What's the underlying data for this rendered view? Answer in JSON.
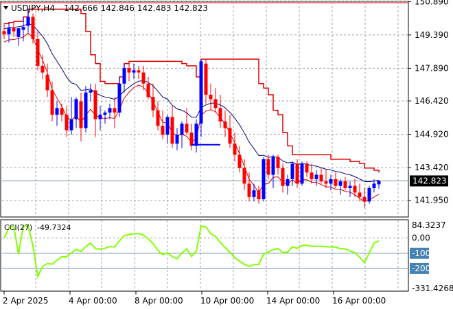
{
  "header": {
    "symbol": "USDJPY,H4",
    "ohlc": "142.666 142.846 142.483 142.823"
  },
  "colors": {
    "up": "#0000ff",
    "down": "#ff0000",
    "upper_band": "#dd0000",
    "fast_ma": "#000080",
    "slow_ma": "#dd0000",
    "cci": "#80ff00",
    "grid": "#a0a0a0",
    "current_price_bg": "#000000",
    "level_bg": "#4682b4"
  },
  "price_axis": {
    "min": 141.2,
    "max": 150.9,
    "ticks": [
      "150.890",
      "149.390",
      "147.890",
      "146.420",
      "144.920",
      "143.420",
      "141.950"
    ],
    "current_price": "142.823"
  },
  "time_axis": {
    "labels": [
      "2 Apr 2025",
      "4 Apr 00:00",
      "8 Apr 00:00",
      "10 Apr 00:00",
      "14 Apr 00:00",
      "16 Apr 00:00"
    ]
  },
  "indicator": {
    "label": "CCI(27)",
    "value": "-49.7324",
    "min": -331.4268,
    "max": 84.3237,
    "axis_max": "84.3237",
    "axis_zero": "0.00",
    "level_minus_100": "-100",
    "level_minus_200": "-200",
    "axis_min": "-331.4268"
  },
  "chart_data": {
    "type": "candlestick",
    "symbol": "USDJPY",
    "timeframe": "H4",
    "candles": [
      [
        149.56,
        149.9,
        149.2,
        149.42
      ],
      [
        149.42,
        149.95,
        149.05,
        149.72
      ],
      [
        149.7,
        150.0,
        149.3,
        149.55
      ],
      [
        149.3,
        149.7,
        148.9,
        149.69
      ],
      [
        149.62,
        150.2,
        149.1,
        149.75
      ],
      [
        149.8,
        150.55,
        149.5,
        150.2
      ],
      [
        150.2,
        150.35,
        149.0,
        149.2
      ],
      [
        149.2,
        149.55,
        147.8,
        148.0
      ],
      [
        148.0,
        148.5,
        147.4,
        147.7
      ],
      [
        147.6,
        148.1,
        146.6,
        146.9
      ],
      [
        146.9,
        147.3,
        145.5,
        145.8
      ],
      [
        145.8,
        146.4,
        145.3,
        146.1
      ],
      [
        146.1,
        146.3,
        145.5,
        145.8
      ],
      [
        145.8,
        146.2,
        144.8,
        145.1
      ],
      [
        145.1,
        146.6,
        144.9,
        145.6
      ],
      [
        145.6,
        146.6,
        145.2,
        146.5
      ],
      [
        146.4,
        146.8,
        144.6,
        145.2
      ],
      [
        145.2,
        147.1,
        145.0,
        146.8
      ],
      [
        146.8,
        147.2,
        146.4,
        146.9
      ],
      [
        146.9,
        147.2,
        144.8,
        145.6
      ],
      [
        145.6,
        146.2,
        145.1,
        145.8
      ],
      [
        145.8,
        146.0,
        145.4,
        145.9
      ],
      [
        145.9,
        146.3,
        145.6,
        146.1
      ],
      [
        146.1,
        146.6,
        145.2,
        145.9
      ],
      [
        145.9,
        147.5,
        145.7,
        147.2
      ],
      [
        147.2,
        148.1,
        146.8,
        147.9
      ],
      [
        147.9,
        148.2,
        147.3,
        147.7
      ],
      [
        147.7,
        148.1,
        147.4,
        147.8
      ],
      [
        147.8,
        148.0,
        147.4,
        147.7
      ],
      [
        147.7,
        148.0,
        146.9,
        147.2
      ],
      [
        147.2,
        147.5,
        146.5,
        146.6
      ],
      [
        146.6,
        147.2,
        145.7,
        146.0
      ],
      [
        146.0,
        146.4,
        145.1,
        145.3
      ],
      [
        145.3,
        146.0,
        144.7,
        144.9
      ],
      [
        144.9,
        145.8,
        144.5,
        145.7
      ],
      [
        145.7,
        146.2,
        144.3,
        144.5
      ],
      [
        144.5,
        145.2,
        144.2,
        144.9
      ],
      [
        144.9,
        145.5,
        144.3,
        145.4
      ],
      [
        145.4,
        146.1,
        144.9,
        145.0
      ],
      [
        145.0,
        145.4,
        144.2,
        144.4
      ],
      [
        144.4,
        145.6,
        144.1,
        145.4
      ],
      [
        145.4,
        148.3,
        144.8,
        148.2
      ],
      [
        148.1,
        148.3,
        146.3,
        146.7
      ],
      [
        146.7,
        147.2,
        146.0,
        146.5
      ],
      [
        146.5,
        147.0,
        145.9,
        146.1
      ],
      [
        146.1,
        146.7,
        145.2,
        145.5
      ],
      [
        145.5,
        146.0,
        144.8,
        145.2
      ],
      [
        145.2,
        145.8,
        144.3,
        144.5
      ],
      [
        144.5,
        145.0,
        143.7,
        144.0
      ],
      [
        144.0,
        144.4,
        143.2,
        143.4
      ],
      [
        143.4,
        143.8,
        142.4,
        142.7
      ],
      [
        142.7,
        143.2,
        141.9,
        142.1
      ],
      [
        142.1,
        142.7,
        141.9,
        142.4
      ],
      [
        142.4,
        142.6,
        141.8,
        142.0
      ],
      [
        142.0,
        143.9,
        141.9,
        143.8
      ],
      [
        143.8,
        144.0,
        142.9,
        143.1
      ],
      [
        143.1,
        144.0,
        142.5,
        143.9
      ],
      [
        143.9,
        144.0,
        143.1,
        143.4
      ],
      [
        143.4,
        143.6,
        142.3,
        142.6
      ],
      [
        142.6,
        143.1,
        142.2,
        142.9
      ],
      [
        142.9,
        143.7,
        142.6,
        143.6
      ],
      [
        143.6,
        143.8,
        142.5,
        142.7
      ],
      [
        142.7,
        143.7,
        142.6,
        143.6
      ],
      [
        143.6,
        143.7,
        143.0,
        143.2
      ],
      [
        143.2,
        143.6,
        142.7,
        142.9
      ],
      [
        142.9,
        143.3,
        142.6,
        143.1
      ],
      [
        143.1,
        143.4,
        142.7,
        142.8
      ],
      [
        142.8,
        143.3,
        142.5,
        142.7
      ],
      [
        142.7,
        143.1,
        142.4,
        142.9
      ],
      [
        142.9,
        143.2,
        142.5,
        142.6
      ],
      [
        142.6,
        142.9,
        142.2,
        142.8
      ],
      [
        142.8,
        143.0,
        142.4,
        142.5
      ],
      [
        142.5,
        142.8,
        142.1,
        142.6
      ],
      [
        142.6,
        142.9,
        142.1,
        142.3
      ],
      [
        142.3,
        142.7,
        141.9,
        142.1
      ],
      [
        142.1,
        142.5,
        141.6,
        141.9
      ],
      [
        141.9,
        142.6,
        141.8,
        142.5
      ],
      [
        142.5,
        142.9,
        142.3,
        142.7
      ],
      [
        142.67,
        142.85,
        142.48,
        142.82
      ]
    ],
    "blue_segment": {
      "price": 144.45,
      "from_index": 39,
      "to_index": 45
    }
  }
}
